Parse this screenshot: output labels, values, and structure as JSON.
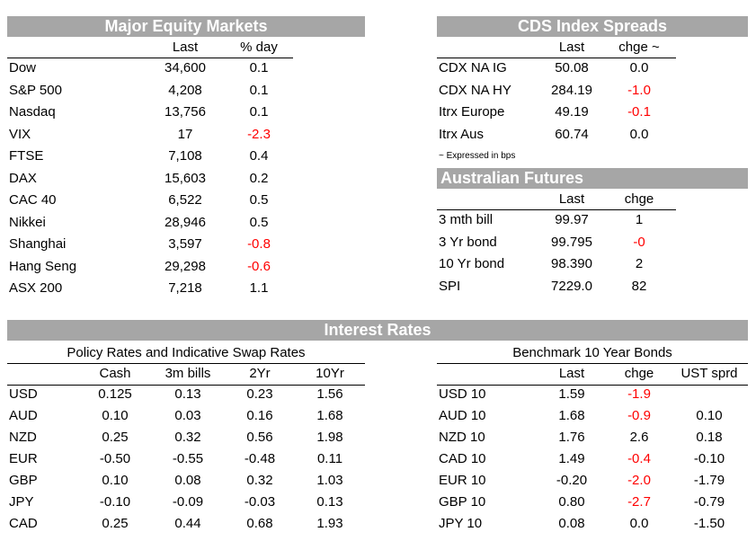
{
  "equity": {
    "title": "Major Equity Markets",
    "headers": [
      "Last",
      "% day"
    ],
    "rows": [
      {
        "name": "Dow",
        "last": "34,600",
        "chg": "0.1",
        "neg": false
      },
      {
        "name": "S&P 500",
        "last": "4,208",
        "chg": "0.1",
        "neg": false
      },
      {
        "name": "Nasdaq",
        "last": "13,756",
        "chg": "0.1",
        "neg": false
      },
      {
        "name": "VIX",
        "last": "17",
        "chg": "-2.3",
        "neg": true
      },
      {
        "name": "FTSE",
        "last": "7,108",
        "chg": "0.4",
        "neg": false
      },
      {
        "name": "DAX",
        "last": "15,603",
        "chg": "0.2",
        "neg": false
      },
      {
        "name": "CAC 40",
        "last": "6,522",
        "chg": "0.5",
        "neg": false
      },
      {
        "name": "Nikkei",
        "last": "28,946",
        "chg": "0.5",
        "neg": false
      },
      {
        "name": "Shanghai",
        "last": "3,597",
        "chg": "-0.8",
        "neg": true
      },
      {
        "name": "Hang Seng",
        "last": "29,298",
        "chg": "-0.6",
        "neg": true
      },
      {
        "name": "ASX 200",
        "last": "7,218",
        "chg": "1.1",
        "neg": false
      }
    ]
  },
  "cds": {
    "title": "CDS Index Spreads",
    "headers": [
      "Last",
      "chge ~"
    ],
    "rows": [
      {
        "name": "CDX NA IG",
        "last": "50.08",
        "chg": "0.0",
        "neg": false
      },
      {
        "name": "CDX NA HY",
        "last": "284.19",
        "chg": "-1.0",
        "neg": true
      },
      {
        "name": "Itrx Europe",
        "last": "49.19",
        "chg": "-0.1",
        "neg": true
      },
      {
        "name": "Itrx Aus",
        "last": "60.74",
        "chg": "0.0",
        "neg": false
      }
    ],
    "note": "~ Expressed in bps"
  },
  "futures": {
    "title": "Australian Futures",
    "headers": [
      "Last",
      "chge"
    ],
    "rows": [
      {
        "name": "3 mth bill",
        "last": "99.97",
        "chg": "1",
        "neg": false
      },
      {
        "name": "3 Yr bond",
        "last": "99.795",
        "chg": "-0",
        "neg": true
      },
      {
        "name": "10 Yr bond",
        "last": "98.390",
        "chg": "2",
        "neg": false
      },
      {
        "name": "SPI",
        "last": "7229.0",
        "chg": "82",
        "neg": false
      }
    ]
  },
  "interest": {
    "title": "Interest Rates",
    "policy": {
      "subtitle": "Policy Rates and Indicative Swap Rates",
      "headers": [
        "Cash",
        "3m bills",
        "2Yr",
        "10Yr"
      ],
      "rows": [
        {
          "name": "USD",
          "vals": [
            "0.125",
            "0.13",
            "0.23",
            "1.56"
          ]
        },
        {
          "name": "AUD",
          "vals": [
            "0.10",
            "0.03",
            "0.16",
            "1.68"
          ]
        },
        {
          "name": "NZD",
          "vals": [
            "0.25",
            "0.32",
            "0.56",
            "1.98"
          ]
        },
        {
          "name": "EUR",
          "vals": [
            "-0.50",
            "-0.55",
            "-0.48",
            "0.11"
          ]
        },
        {
          "name": "GBP",
          "vals": [
            "0.10",
            "0.08",
            "0.32",
            "1.03"
          ]
        },
        {
          "name": "JPY",
          "vals": [
            "-0.10",
            "-0.09",
            "-0.03",
            "0.13"
          ]
        },
        {
          "name": "CAD",
          "vals": [
            "0.25",
            "0.44",
            "0.68",
            "1.93"
          ]
        }
      ]
    },
    "bonds": {
      "subtitle": "Benchmark 10 Year Bonds",
      "headers": [
        "Last",
        "chge",
        "UST sprd"
      ],
      "rows": [
        {
          "name": "USD 10",
          "last": "1.59",
          "chg": "-1.9",
          "neg": true,
          "sprd": ""
        },
        {
          "name": "AUD 10",
          "last": "1.68",
          "chg": "-0.9",
          "neg": true,
          "sprd": "0.10"
        },
        {
          "name": "NZD 10",
          "last": "1.76",
          "chg": "2.6",
          "neg": false,
          "sprd": "0.18"
        },
        {
          "name": "CAD 10",
          "last": "1.49",
          "chg": "-0.4",
          "neg": true,
          "sprd": "-0.10"
        },
        {
          "name": "EUR 10",
          "last": "-0.20",
          "chg": "-2.0",
          "neg": true,
          "sprd": "-1.79"
        },
        {
          "name": "GBP 10",
          "last": "0.80",
          "chg": "-2.7",
          "neg": true,
          "sprd": "-0.79"
        },
        {
          "name": "JPY 10",
          "last": "0.08",
          "chg": "0.0",
          "neg": false,
          "sprd": "-1.50"
        }
      ]
    }
  },
  "colors": {
    "header_bg": "#a6a6a6",
    "negative": "#ff0000"
  }
}
